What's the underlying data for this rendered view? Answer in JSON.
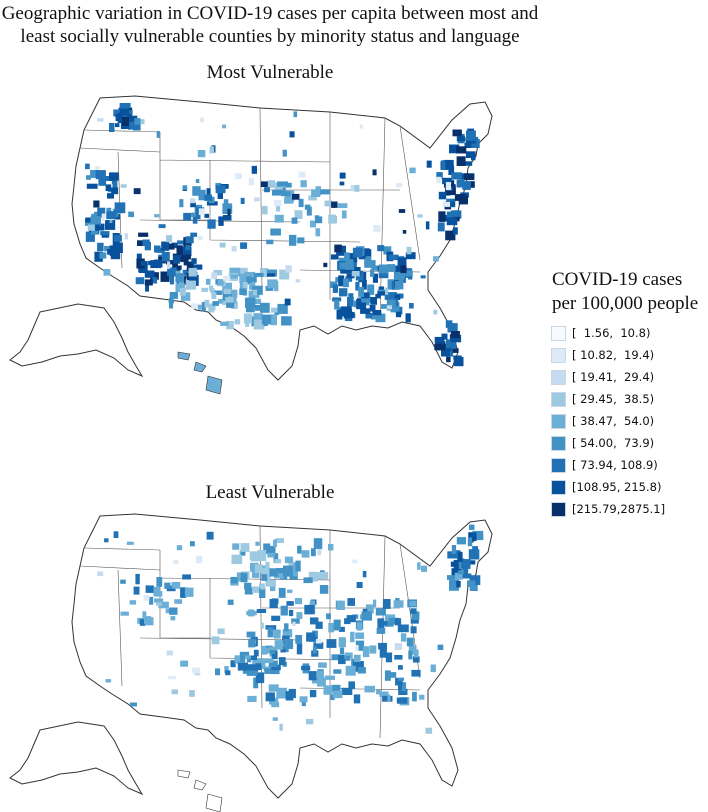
{
  "title_lines": [
    "Geographic variation in COVID-19 cases per capita between most and",
    "least socially vulnerable counties by minority status and language"
  ],
  "maps": [
    {
      "title": "Most Vulnerable"
    },
    {
      "title": "Least Vulnerable"
    }
  ],
  "legend": {
    "title_lines": [
      "COVID-19 cases",
      "per 100,000 people"
    ],
    "items": [
      {
        "label": "[  1.56,  10.8)",
        "color": "#f7fbff"
      },
      {
        "label": "[ 10.82,  19.4)",
        "color": "#deebf7"
      },
      {
        "label": "[ 19.41,  29.4)",
        "color": "#c6dbef"
      },
      {
        "label": "[ 29.45,  38.5)",
        "color": "#9ecae1"
      },
      {
        "label": "[ 38.47,  54.0)",
        "color": "#6baed6"
      },
      {
        "label": "[ 54.00,  73.9)",
        "color": "#4292c6"
      },
      {
        "label": "[ 73.94, 108.9)",
        "color": "#2171b5"
      },
      {
        "label": "[108.95, 215.8)",
        "color": "#08519c"
      },
      {
        "label": "[215.79,2875.1]",
        "color": "#08306b"
      }
    ]
  }
}
